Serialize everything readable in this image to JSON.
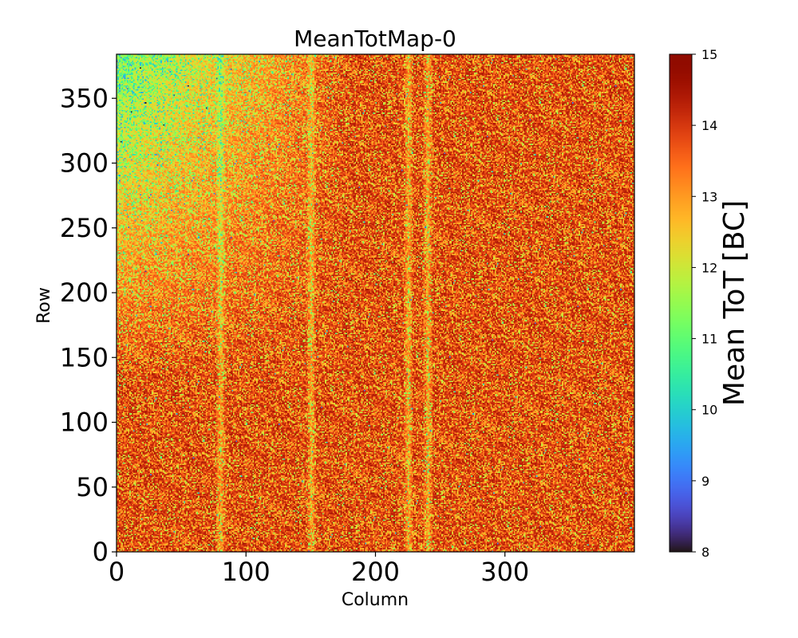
{
  "chart_data": {
    "type": "heatmap",
    "title": "MeanTotMap-0",
    "xlabel": "Column",
    "ylabel": "Row",
    "xlim": [
      0,
      400
    ],
    "ylim": [
      0,
      384
    ],
    "grid_shape": {
      "columns": 400,
      "rows": 384
    },
    "x_ticks": [
      0,
      100,
      200,
      300
    ],
    "y_ticks": [
      0,
      50,
      100,
      150,
      200,
      250,
      300,
      350
    ],
    "colorbar": {
      "label": "Mean ToT [BC]",
      "min": 8,
      "max": 15,
      "ticks": [
        8,
        9,
        10,
        11,
        12,
        13,
        14,
        15
      ],
      "colormap": "turbo"
    },
    "value_summary": {
      "typical": 14.6,
      "lower_edge_region": "Row > 250 and Column < 60 (values around 12-13)",
      "lighter_columns": [
        80,
        150,
        225,
        240
      ]
    },
    "grid": false
  }
}
